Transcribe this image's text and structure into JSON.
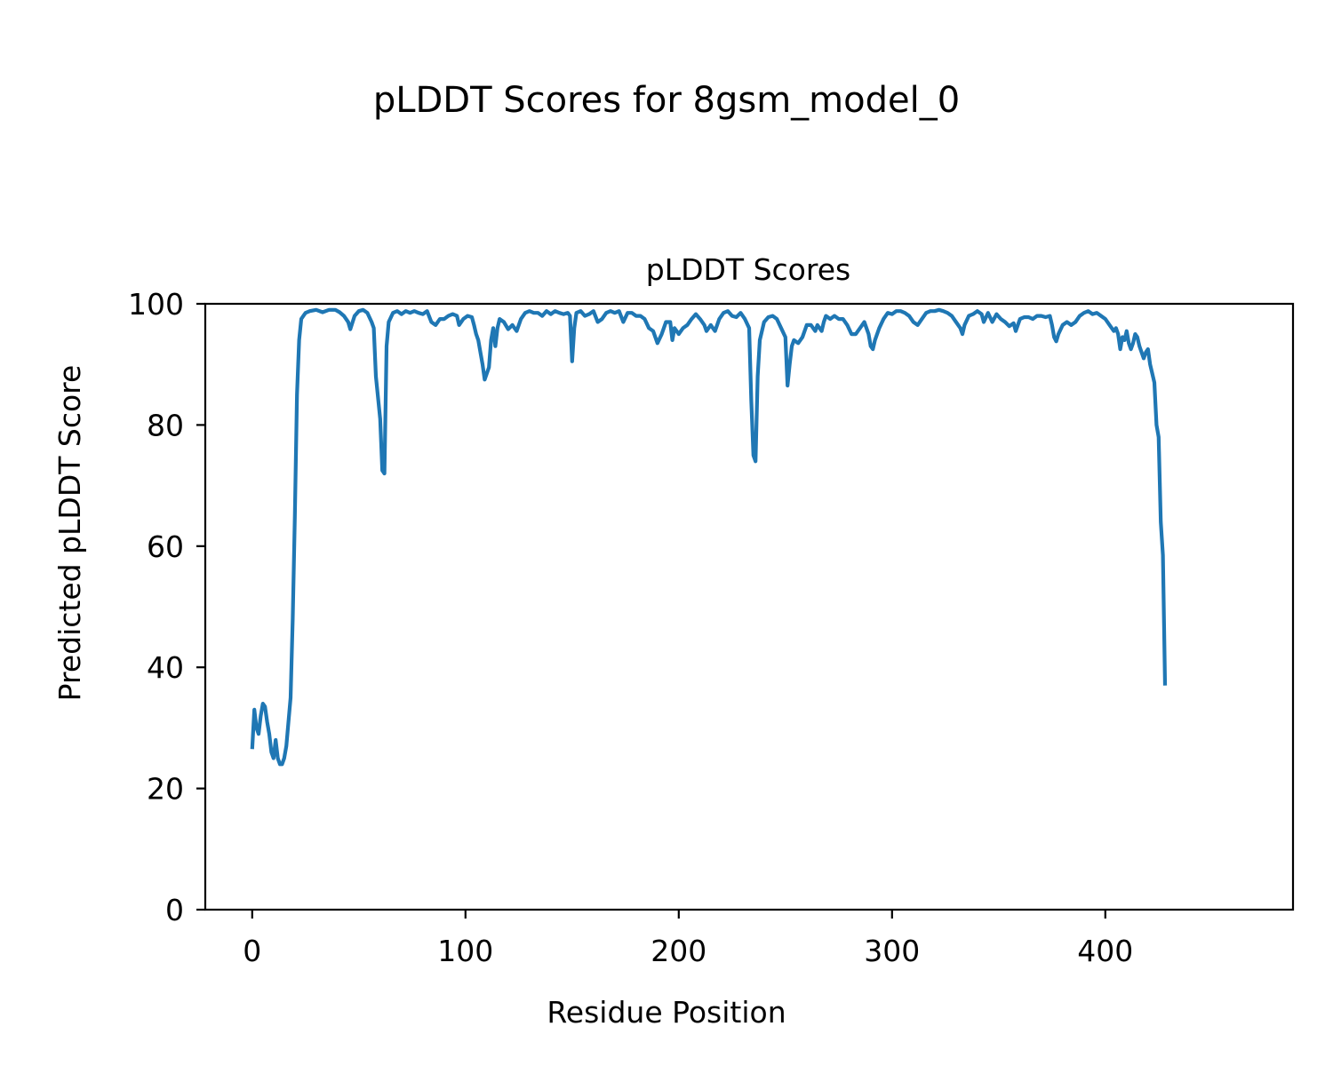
{
  "figure": {
    "suptitle": "pLDDT Scores for 8gsm_model_0"
  },
  "chart_data": {
    "type": "line",
    "title": "pLDDT Scores",
    "xlabel": "Residue Position",
    "ylabel": "Predicted pLDDT Score",
    "xlim": [
      -22,
      488
    ],
    "ylim": [
      0,
      100
    ],
    "xticks": [
      0,
      100,
      200,
      300,
      400
    ],
    "yticks": [
      0,
      20,
      40,
      60,
      80,
      100
    ],
    "grid": false,
    "series_color": "#1f77b4",
    "series": [
      {
        "points": [
          [
            0,
            26.5
          ],
          [
            1,
            33
          ],
          [
            2,
            30
          ],
          [
            3,
            29
          ],
          [
            4,
            32
          ],
          [
            5,
            34
          ],
          [
            6,
            33.5
          ],
          [
            7,
            31
          ],
          [
            8,
            29
          ],
          [
            9,
            26
          ],
          [
            10,
            25
          ],
          [
            11,
            28
          ],
          [
            12,
            25
          ],
          [
            13,
            24
          ],
          [
            14,
            24
          ],
          [
            15,
            25
          ],
          [
            16,
            27
          ],
          [
            17,
            31
          ],
          [
            18,
            35
          ],
          [
            19,
            48
          ],
          [
            20,
            65
          ],
          [
            21,
            85
          ],
          [
            22,
            94
          ],
          [
            23,
            97.5
          ],
          [
            24,
            98
          ],
          [
            25,
            98.5
          ],
          [
            27,
            98.8
          ],
          [
            30,
            99
          ],
          [
            33,
            98.6
          ],
          [
            36,
            99
          ],
          [
            39,
            99
          ],
          [
            41,
            98.6
          ],
          [
            43,
            98
          ],
          [
            45,
            97
          ],
          [
            46,
            95.8
          ],
          [
            48,
            98
          ],
          [
            50,
            98.8
          ],
          [
            52,
            99
          ],
          [
            54,
            98.5
          ],
          [
            56,
            97
          ],
          [
            57,
            96
          ],
          [
            58,
            88
          ],
          [
            60,
            81
          ],
          [
            61,
            72.5
          ],
          [
            62,
            72
          ],
          [
            63,
            93
          ],
          [
            64,
            97
          ],
          [
            66,
            98.5
          ],
          [
            68,
            98.8
          ],
          [
            70,
            98.3
          ],
          [
            72,
            98.8
          ],
          [
            74,
            98.5
          ],
          [
            76,
            98.8
          ],
          [
            78,
            98.5
          ],
          [
            80,
            98.3
          ],
          [
            82,
            98.8
          ],
          [
            84,
            97
          ],
          [
            86,
            96.5
          ],
          [
            88,
            97.5
          ],
          [
            90,
            97.5
          ],
          [
            92,
            98
          ],
          [
            94,
            98.3
          ],
          [
            96,
            98
          ],
          [
            97,
            96.5
          ],
          [
            99,
            97.5
          ],
          [
            101,
            98
          ],
          [
            103,
            97.8
          ],
          [
            104,
            96.5
          ],
          [
            105,
            95
          ],
          [
            106,
            94
          ],
          [
            107,
            92
          ],
          [
            108,
            90
          ],
          [
            109,
            87.5
          ],
          [
            110,
            88.5
          ],
          [
            111,
            89.5
          ],
          [
            112,
            94
          ],
          [
            113,
            96
          ],
          [
            114,
            93
          ],
          [
            115,
            96
          ],
          [
            116,
            97.5
          ],
          [
            118,
            97
          ],
          [
            120,
            95.8
          ],
          [
            122,
            96.5
          ],
          [
            124,
            95.5
          ],
          [
            126,
            97.5
          ],
          [
            128,
            98.5
          ],
          [
            130,
            98.8
          ],
          [
            132,
            98.5
          ],
          [
            134,
            98.5
          ],
          [
            136,
            98
          ],
          [
            138,
            98.8
          ],
          [
            140,
            98.3
          ],
          [
            142,
            98.8
          ],
          [
            144,
            98.5
          ],
          [
            146,
            98.3
          ],
          [
            148,
            98.5
          ],
          [
            149,
            98
          ],
          [
            150,
            90.5
          ],
          [
            151,
            96
          ],
          [
            152,
            98.5
          ],
          [
            154,
            98.8
          ],
          [
            156,
            98
          ],
          [
            158,
            98.3
          ],
          [
            160,
            98.8
          ],
          [
            162,
            97
          ],
          [
            164,
            97.5
          ],
          [
            166,
            98.5
          ],
          [
            168,
            98.8
          ],
          [
            170,
            98.5
          ],
          [
            172,
            98.8
          ],
          [
            174,
            97
          ],
          [
            176,
            98.5
          ],
          [
            178,
            98.5
          ],
          [
            180,
            98
          ],
          [
            182,
            98
          ],
          [
            184,
            97.5
          ],
          [
            186,
            96
          ],
          [
            188,
            95.5
          ],
          [
            190,
            93.5
          ],
          [
            192,
            95
          ],
          [
            194,
            97
          ],
          [
            196,
            97
          ],
          [
            197,
            94
          ],
          [
            198,
            96
          ],
          [
            200,
            95
          ],
          [
            202,
            96
          ],
          [
            204,
            96.5
          ],
          [
            206,
            97.5
          ],
          [
            208,
            98.3
          ],
          [
            210,
            97.5
          ],
          [
            212,
            96.5
          ],
          [
            213,
            95.5
          ],
          [
            215,
            96.5
          ],
          [
            217,
            95.5
          ],
          [
            219,
            97.5
          ],
          [
            221,
            98.5
          ],
          [
            223,
            98.8
          ],
          [
            225,
            98
          ],
          [
            227,
            97.8
          ],
          [
            229,
            98.5
          ],
          [
            231,
            97.5
          ],
          [
            233,
            96
          ],
          [
            234,
            84
          ],
          [
            235,
            75
          ],
          [
            236,
            74
          ],
          [
            237,
            88
          ],
          [
            238,
            94
          ],
          [
            240,
            97
          ],
          [
            242,
            97.8
          ],
          [
            244,
            98
          ],
          [
            246,
            97.5
          ],
          [
            248,
            96
          ],
          [
            250,
            94.5
          ],
          [
            251,
            86.5
          ],
          [
            252,
            90
          ],
          [
            253,
            93
          ],
          [
            254,
            94
          ],
          [
            256,
            93.5
          ],
          [
            258,
            94.5
          ],
          [
            260,
            96.5
          ],
          [
            262,
            96.5
          ],
          [
            264,
            95.5
          ],
          [
            265,
            96.5
          ],
          [
            267,
            95.5
          ],
          [
            268,
            97
          ],
          [
            269,
            98
          ],
          [
            271,
            97.5
          ],
          [
            273,
            98
          ],
          [
            275,
            97.5
          ],
          [
            277,
            97.5
          ],
          [
            279,
            96.5
          ],
          [
            281,
            95
          ],
          [
            283,
            95
          ],
          [
            285,
            96
          ],
          [
            287,
            97
          ],
          [
            289,
            95
          ],
          [
            290,
            93
          ],
          [
            291,
            92.5
          ],
          [
            292,
            94
          ],
          [
            294,
            96
          ],
          [
            296,
            97.5
          ],
          [
            298,
            98.5
          ],
          [
            300,
            98.3
          ],
          [
            302,
            98.8
          ],
          [
            304,
            98.8
          ],
          [
            306,
            98.5
          ],
          [
            308,
            98
          ],
          [
            310,
            97
          ],
          [
            312,
            96.5
          ],
          [
            314,
            97.5
          ],
          [
            316,
            98.5
          ],
          [
            318,
            98.8
          ],
          [
            320,
            98.8
          ],
          [
            322,
            99
          ],
          [
            324,
            98.8
          ],
          [
            326,
            98.5
          ],
          [
            328,
            98
          ],
          [
            330,
            97
          ],
          [
            332,
            96
          ],
          [
            333,
            95
          ],
          [
            334,
            96.5
          ],
          [
            336,
            98
          ],
          [
            338,
            98.3
          ],
          [
            340,
            98.8
          ],
          [
            342,
            98.3
          ],
          [
            343,
            97
          ],
          [
            345,
            98.5
          ],
          [
            347,
            97
          ],
          [
            349,
            98.3
          ],
          [
            351,
            97.5
          ],
          [
            353,
            97
          ],
          [
            355,
            96.3
          ],
          [
            357,
            96.8
          ],
          [
            358,
            95.5
          ],
          [
            360,
            97.5
          ],
          [
            362,
            97.8
          ],
          [
            364,
            97.8
          ],
          [
            366,
            97.5
          ],
          [
            368,
            98
          ],
          [
            370,
            98
          ],
          [
            372,
            97.8
          ],
          [
            374,
            98
          ],
          [
            375,
            96.5
          ],
          [
            376,
            94.5
          ],
          [
            377,
            93.8
          ],
          [
            378,
            95
          ],
          [
            380,
            96.5
          ],
          [
            382,
            97
          ],
          [
            384,
            96.5
          ],
          [
            386,
            97
          ],
          [
            388,
            98
          ],
          [
            390,
            98.5
          ],
          [
            392,
            98.8
          ],
          [
            394,
            98.3
          ],
          [
            396,
            98.5
          ],
          [
            398,
            98
          ],
          [
            400,
            97.5
          ],
          [
            402,
            96.5
          ],
          [
            404,
            95.5
          ],
          [
            405,
            96
          ],
          [
            406,
            95
          ],
          [
            407,
            92.5
          ],
          [
            408,
            94.5
          ],
          [
            409,
            94
          ],
          [
            410,
            95.5
          ],
          [
            411,
            93.5
          ],
          [
            412,
            92.5
          ],
          [
            413,
            93.5
          ],
          [
            414,
            95
          ],
          [
            415,
            94.5
          ],
          [
            416,
            93
          ],
          [
            417,
            92
          ],
          [
            418,
            91
          ],
          [
            419,
            92
          ],
          [
            420,
            92.5
          ],
          [
            421,
            90
          ],
          [
            422,
            88.5
          ],
          [
            423,
            87
          ],
          [
            424,
            80
          ],
          [
            425,
            78
          ],
          [
            426,
            64
          ],
          [
            427,
            58.5
          ],
          [
            428,
            37
          ]
        ]
      }
    ]
  }
}
